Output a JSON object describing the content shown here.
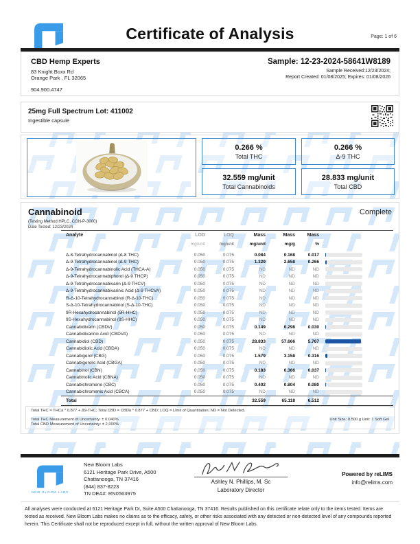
{
  "header": {
    "title": "Certificate of Analysis",
    "page_label": "Page: 1 of 6",
    "logo_text": "NEW BLOOM LABS"
  },
  "client": {
    "name": "CBD Hemp Experts",
    "address_line1": "83 Knight Boxx Rd",
    "address_line2": "Orange Park , FL 32065",
    "phone": "904.900.4747"
  },
  "sample": {
    "id_line": "Sample: 12-23-2024-58641W8189",
    "received_line": "Sample Received:12/23/2024;",
    "report_line": "Report Created: 01/08/2025; Expires: 01/08/2026"
  },
  "product": {
    "lot_line": "25mg Full Spectrum Lot: 411002",
    "form": "Ingestible capsule"
  },
  "summary": {
    "boxes": [
      {
        "value": "0.266 %",
        "label": "Total THC"
      },
      {
        "value": "0.266 %",
        "label": "Δ-9 THC"
      },
      {
        "value": "32.559 mg/unit",
        "label": "Total Cannabinoids"
      },
      {
        "value": "28.833 mg/unit",
        "label": "Total CBD"
      }
    ]
  },
  "panel": {
    "title": "Cannabinoid",
    "status": "Complete",
    "method": "(Testing Method:HPLC, CON-P-3000)",
    "date_tested": "Date Tested: 12/23/2024"
  },
  "table": {
    "col_headers": [
      "Analyte",
      "LOD",
      "LOQ",
      "Mass",
      "Mass",
      "Mass"
    ],
    "unit_headers": [
      "mg/unit",
      "mg/unit",
      "mg/unit",
      "mg/g",
      "%"
    ],
    "bar_scale_max": 6,
    "rows": [
      {
        "name": "Δ-8-Tetrahydrocannabinol (Δ-8 THC)",
        "lod": "0.050",
        "loq": "0.075",
        "mass_unit": "0.084",
        "mass_g": "0.168",
        "pct": "0.017"
      },
      {
        "name": "Δ-9-Tetrahydrocannabinol (Δ-9 THC)",
        "lod": "0.050",
        "loq": "0.075",
        "mass_unit": "1.329",
        "mass_g": "2.658",
        "pct": "0.266"
      },
      {
        "name": "Δ-9-Tetrahydrocannabinolic Acid (THCA-A)",
        "lod": "0.050",
        "loq": "0.075",
        "mass_unit": "ND",
        "mass_g": "ND",
        "pct": "ND"
      },
      {
        "name": "Δ-9-Tetrahydrocannabiphorol (Δ-9 THCP)",
        "lod": "0.050",
        "loq": "0.075",
        "mass_unit": "ND",
        "mass_g": "ND",
        "pct": "ND"
      },
      {
        "name": "Δ-9-Tetrahydrocannabivarin (Δ-9 THCV)",
        "lod": "0.050",
        "loq": "0.075",
        "mass_unit": "ND",
        "mass_g": "ND",
        "pct": "ND"
      },
      {
        "name": "Δ-9-Tetrahydrocannabivarinic Acid (Δ-9 THCVA)",
        "lod": "0.050",
        "loq": "0.075",
        "mass_unit": "ND",
        "mass_g": "ND",
        "pct": "ND"
      },
      {
        "name": "R-Δ-10-Tetrahydrocannabinol (R-Δ-10-THC)",
        "lod": "0.050",
        "loq": "0.075",
        "mass_unit": "ND",
        "mass_g": "ND",
        "pct": "ND"
      },
      {
        "name": "S-Δ-10-Tetrahydrocannabinol (S-Δ-10-THC)",
        "lod": "0.050",
        "loq": "0.075",
        "mass_unit": "ND",
        "mass_g": "ND",
        "pct": "ND"
      },
      {
        "name": "9R-Hexahydrocannabinol (9R-HHC)",
        "lod": "0.050",
        "loq": "0.075",
        "mass_unit": "ND",
        "mass_g": "ND",
        "pct": "ND"
      },
      {
        "name": "9S-Hexahydrocannabinol (9S-HHC)",
        "lod": "0.050",
        "loq": "0.075",
        "mass_unit": "ND",
        "mass_g": "ND",
        "pct": "ND"
      },
      {
        "name": "Cannabidivarin (CBDV)",
        "lod": "0.050",
        "loq": "0.075",
        "mass_unit": "0.149",
        "mass_g": "0.298",
        "pct": "0.030"
      },
      {
        "name": "Cannabidivarinic Acid (CBDVA)",
        "lod": "0.050",
        "loq": "0.075",
        "mass_unit": "ND",
        "mass_g": "ND",
        "pct": "ND"
      },
      {
        "name": "Cannabidiol (CBD)",
        "lod": "0.050",
        "loq": "0.075",
        "mass_unit": "28.833",
        "mass_g": "57.666",
        "pct": "5.767"
      },
      {
        "name": "Cannabidiolic Acid (CBDA)",
        "lod": "0.050",
        "loq": "0.075",
        "mass_unit": "ND",
        "mass_g": "ND",
        "pct": "ND"
      },
      {
        "name": "Cannabigerol (CBG)",
        "lod": "0.050",
        "loq": "0.075",
        "mass_unit": "1.579",
        "mass_g": "3.158",
        "pct": "0.316"
      },
      {
        "name": "Cannabigerolic Acid (CBGA)",
        "lod": "0.050",
        "loq": "0.075",
        "mass_unit": "ND",
        "mass_g": "ND",
        "pct": "ND"
      },
      {
        "name": "Cannabinol (CBN)",
        "lod": "0.050",
        "loq": "0.075",
        "mass_unit": "0.183",
        "mass_g": "0.366",
        "pct": "0.037"
      },
      {
        "name": "Cannabinolic Acid (CBNA)",
        "lod": "0.050",
        "loq": "0.075",
        "mass_unit": "ND",
        "mass_g": "ND",
        "pct": "ND"
      },
      {
        "name": "Cannabichromene (CBC)",
        "lod": "0.050",
        "loq": "0.075",
        "mass_unit": "0.402",
        "mass_g": "0.804",
        "pct": "0.080"
      },
      {
        "name": "Cannabichromenic Acid (CBCA)",
        "lod": "0.050",
        "loq": "0.075",
        "mass_unit": "ND",
        "mass_g": "ND",
        "pct": "ND"
      }
    ],
    "total": {
      "label": "Total",
      "mass_unit": "32.559",
      "mass_g": "65.118",
      "pct": "6.512"
    }
  },
  "footnotes": {
    "definitions": "Total THC = THCa * 0.877 + Δ9-THC; Total CBD = CBDa * 0.877 + CBD; LOQ = Limit of Quantitation; ND = Not Detected.",
    "thc_uncertainty": "Total THC Measurement of Uncertainty: ± 0.040%",
    "cbd_uncertainty": "Total CBD Measurement of Uncertainty: ± 2.000%",
    "unit_info": "Unit Size: 0.500 g Unit: 1 Soft Gel"
  },
  "footer": {
    "logo_text": "NEW BLOOM LABS",
    "lab_name": "New Bloom Labs",
    "address_line1": "6121 Heritage Park Drive, A500",
    "address_line2": "Chattanooga, TN 37416",
    "phone": "(844) 837-8223",
    "dea": "TN DEA#: RN0563975",
    "signer_name": "Ashley N. Phillips, M. Sc",
    "signer_title": "Laboratory Director",
    "powered_by": "Powered by reLIMS",
    "email": "info@relims.com"
  },
  "disclaimer": "All analyses were conducted at 6121 Heritage Park Dr, Suite A500 Chattanooga, TN 37416. Results published on this certificate relate only to the items tested. Items are tested as received. New Bloom Labs makes no claims as to the efficacy, safety, or other risks associated with any detected or non-detected level of any compounds reported herein. This Certificate shall not be reproduced except in full, without the written approval of New Bloom Labs.",
  "colors": {
    "accent": "#3a9be9",
    "bar_fill": "#1b55a5",
    "watermark": "#d4e8fa",
    "summary_border": "#3d85c8"
  }
}
